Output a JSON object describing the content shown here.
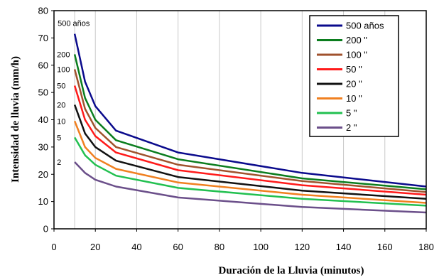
{
  "chart_data": {
    "type": "line",
    "title": "",
    "xlabel": "Duración de la Lluvia (minutos)",
    "ylabel": "Intensidad de lluvia (mm/h)",
    "xlim": [
      0,
      180
    ],
    "ylim": [
      0,
      80
    ],
    "xticks": [
      "0",
      "20",
      "40",
      "60",
      "80",
      "100",
      "120",
      "140",
      "160",
      "180"
    ],
    "yticks": [
      "0",
      "10",
      "20",
      "30",
      "40",
      "50",
      "60",
      "70",
      "80"
    ],
    "grid": "vertical",
    "legend_position": "top-right",
    "x": [
      10,
      15,
      20,
      30,
      60,
      120,
      180
    ],
    "series": [
      {
        "name": "500 años",
        "label": "500 años",
        "color": "#0a0a8c",
        "values": [
          71.5,
          54,
          45,
          36,
          28,
          20.5,
          15.5
        ]
      },
      {
        "name": "200 \"",
        "label": "200",
        "color": "#0b7d1e",
        "values": [
          64,
          48,
          40,
          32.5,
          25.5,
          18.5,
          14.5
        ]
      },
      {
        "name": "100 \"",
        "label": "100",
        "color": "#a0522d",
        "values": [
          58.5,
          44,
          37,
          30,
          23.5,
          17.5,
          13.5
        ]
      },
      {
        "name": "50 \"",
        "label": "50",
        "color": "#ff1a1a",
        "values": [
          52.5,
          40,
          34,
          28,
          21.5,
          16,
          12.5
        ]
      },
      {
        "name": "20 \"",
        "label": "20",
        "color": "#111111",
        "values": [
          45.5,
          35,
          30,
          25,
          19,
          14,
          11
        ]
      },
      {
        "name": "10 \"",
        "label": "10",
        "color": "#f08020",
        "values": [
          39.5,
          30,
          26,
          22,
          17,
          12.5,
          9.5
        ]
      },
      {
        "name": "5 \"",
        "label": "5",
        "color": "#22c050",
        "values": [
          33.5,
          27,
          23.5,
          19.5,
          15,
          11,
          8.5
        ]
      },
      {
        "name": "2 \"",
        "label": "2",
        "color": "#6b4f8a",
        "values": [
          24.5,
          20.5,
          18,
          15.5,
          11.5,
          8,
          6
        ]
      }
    ]
  }
}
